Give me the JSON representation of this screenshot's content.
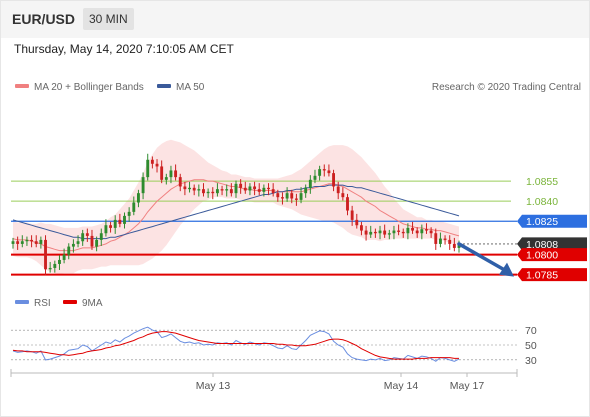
{
  "header": {
    "symbol": "EUR/USD",
    "timeframe": "30 MIN"
  },
  "datetime": "Thursday, May 14, 2020 7:10:05 AM CET",
  "credit": "Research © 2020 Trading Central",
  "colors": {
    "up_candle": "#2e8b2e",
    "down_candle": "#cc2020",
    "bollinger": "#f08080",
    "ma50": "#3a5a9a",
    "resistance": "#9acd5a",
    "pivot": "#2d6fe0",
    "support": "#e00000",
    "last_price": "#333333",
    "rsi": "#6a8ee0",
    "rsi_ma": "#e00000"
  },
  "chart_data": [
    {
      "type": "line",
      "title": "",
      "legend": [
        "MA 20 + Bollinger Bands",
        "MA 50"
      ],
      "x_ticks": [
        "May 13",
        "May 14",
        "May 17"
      ],
      "levels": [
        {
          "label": "1.0855",
          "value": 1.0855,
          "kind": "resistance"
        },
        {
          "label": "1.0840",
          "value": 1.084,
          "kind": "resistance"
        },
        {
          "label": "1.0825",
          "value": 1.0825,
          "kind": "pivot"
        },
        {
          "label": "1.0808",
          "value": 1.0808,
          "kind": "last"
        },
        {
          "label": "1.0800",
          "value": 1.08,
          "kind": "support"
        },
        {
          "label": "1.0785",
          "value": 1.0785,
          "kind": "support"
        }
      ],
      "ylim": [
        1.0775,
        1.0915
      ],
      "arrow": {
        "from": 1.0808,
        "to": 1.0785,
        "direction": "down"
      },
      "series": [
        {
          "name": "EUR/USD",
          "close": [
            1.081,
            1.0808,
            1.081,
            1.0811,
            1.081,
            1.0808,
            1.0811,
            1.0789,
            1.079,
            1.0793,
            1.0796,
            1.08,
            1.0806,
            1.0808,
            1.081,
            1.0816,
            1.0814,
            1.0806,
            1.0811,
            1.0816,
            1.0822,
            1.082,
            1.0826,
            1.0823,
            1.0829,
            1.0832,
            1.0839,
            1.0846,
            1.0858,
            1.0871,
            1.0868,
            1.0866,
            1.0856,
            1.0858,
            1.0863,
            1.0858,
            1.0851,
            1.0849,
            1.085,
            1.0848,
            1.0849,
            1.0846,
            1.0847,
            1.0846,
            1.0849,
            1.0848,
            1.0849,
            1.0846,
            1.0853,
            1.085,
            1.0848,
            1.0851,
            1.0849,
            1.0847,
            1.085,
            1.0849,
            1.0846,
            1.0843,
            1.0842,
            1.0846,
            1.0842,
            1.0841,
            1.0846,
            1.085,
            1.0856,
            1.0859,
            1.0864,
            1.0863,
            1.0861,
            1.0851,
            1.0846,
            1.0843,
            1.0833,
            1.0826,
            1.0822,
            1.0818,
            1.0815,
            1.0817,
            1.0816,
            1.0818,
            1.0815,
            1.0816,
            1.0818,
            1.0817,
            1.0816,
            1.082,
            1.0818,
            1.0816,
            1.0819,
            1.0818,
            1.0816,
            1.0808,
            1.0812,
            1.0811,
            1.0808,
            1.0805,
            1.0808
          ]
        },
        {
          "name": "MA 20",
          "values": [
            1.0812,
            1.0811,
            1.0811,
            1.0811,
            1.081,
            1.0809,
            1.0808,
            1.0806,
            1.0805,
            1.0804,
            1.0803,
            1.0803,
            1.0803,
            1.0803,
            1.0804,
            1.0805,
            1.0805,
            1.0805,
            1.0806,
            1.0807,
            1.0808,
            1.081,
            1.0811,
            1.0813,
            1.0815,
            1.0817,
            1.082,
            1.0823,
            1.0827,
            1.0832,
            1.0836,
            1.084,
            1.0843,
            1.0846,
            1.0849,
            1.0851,
            1.0853,
            1.0854,
            1.0855,
            1.0856,
            1.0856,
            1.0856,
            1.0855,
            1.0855,
            1.0854,
            1.0853,
            1.0852,
            1.0851,
            1.0851,
            1.085,
            1.0849,
            1.0849,
            1.0848,
            1.0848,
            1.0848,
            1.0848,
            1.0848,
            1.0847,
            1.0847,
            1.0847,
            1.0847,
            1.0847,
            1.0847,
            1.0848,
            1.0849,
            1.085,
            1.0851,
            1.0852,
            1.0853,
            1.0853,
            1.0852,
            1.0851,
            1.0849,
            1.0847,
            1.0845,
            1.0843,
            1.084,
            1.0838,
            1.0836,
            1.0833,
            1.0831,
            1.0829,
            1.0827,
            1.0825,
            1.0823,
            1.0822,
            1.0821,
            1.082,
            1.082,
            1.0819,
            1.0819,
            1.0818,
            1.0818,
            1.0817,
            1.0816,
            1.0815,
            1.0814
          ]
        },
        {
          "name": "MA 50",
          "values": [
            1.0826,
            1.0825,
            1.0824,
            1.0823,
            1.0822,
            1.0821,
            1.082,
            1.0819,
            1.0818,
            1.0817,
            1.0816,
            1.0815,
            1.0814,
            1.0813,
            1.0813,
            1.0812,
            1.0812,
            1.0812,
            1.0812,
            1.0812,
            1.0812,
            1.0813,
            1.0813,
            1.0814,
            1.0815,
            1.0816,
            1.0817,
            1.0818,
            1.0819,
            1.082,
            1.0821,
            1.0822,
            1.0823,
            1.0824,
            1.0825,
            1.0826,
            1.0827,
            1.0828,
            1.0829,
            1.083,
            1.0831,
            1.0832,
            1.0833,
            1.0834,
            1.0835,
            1.0836,
            1.0837,
            1.0838,
            1.0839,
            1.084,
            1.0841,
            1.0842,
            1.0843,
            1.0844,
            1.0845,
            1.0845,
            1.0846,
            1.0847,
            1.0847,
            1.0848,
            1.0848,
            1.0849,
            1.0849,
            1.085,
            1.085,
            1.0851,
            1.0851,
            1.0851,
            1.0852,
            1.0852,
            1.0852,
            1.0852,
            1.0851,
            1.0851,
            1.085,
            1.085,
            1.0849,
            1.0848,
            1.0847,
            1.0846,
            1.0845,
            1.0844,
            1.0843,
            1.0842,
            1.0841,
            1.084,
            1.0839,
            1.0838,
            1.0837,
            1.0836,
            1.0835,
            1.0834,
            1.0833,
            1.0832,
            1.0831,
            1.083,
            1.0829
          ]
        },
        {
          "name": "Bollinger Band Width",
          "values": [
            0.0013,
            0.0013,
            0.0013,
            0.0013,
            0.0013,
            0.0014,
            0.0016,
            0.0017,
            0.0018,
            0.0018,
            0.0018,
            0.0017,
            0.0017,
            0.0017,
            0.0016,
            0.0016,
            0.0016,
            0.0016,
            0.0016,
            0.0016,
            0.0017,
            0.0018,
            0.0019,
            0.0021,
            0.0023,
            0.0025,
            0.0028,
            0.0031,
            0.0034,
            0.0037,
            0.0039,
            0.004,
            0.004,
            0.0039,
            0.0037,
            0.0034,
            0.0031,
            0.0028,
            0.0025,
            0.0022,
            0.0019,
            0.0016,
            0.0014,
            0.0012,
            0.0011,
            0.001,
            0.001,
            0.0009,
            0.0009,
            0.0009,
            0.0009,
            0.0009,
            0.0009,
            0.0009,
            0.0009,
            0.0009,
            0.0009,
            0.001,
            0.0011,
            0.0012,
            0.0013,
            0.0015,
            0.0017,
            0.0019,
            0.0021,
            0.0023,
            0.0025,
            0.0027,
            0.0028,
            0.0029,
            0.003,
            0.0031,
            0.0032,
            0.0032,
            0.0031,
            0.003,
            0.0029,
            0.0027,
            0.0025,
            0.0023,
            0.002,
            0.0018,
            0.0015,
            0.0013,
            0.0011,
            0.001,
            0.0009,
            0.0008,
            0.0008,
            0.0007,
            0.0007,
            0.0007,
            0.0007,
            0.0007,
            0.0007,
            0.0007,
            0.0007
          ]
        }
      ]
    },
    {
      "type": "line",
      "title": "",
      "legend": [
        "RSI",
        "9MA"
      ],
      "y_ticks": [
        70,
        50,
        30
      ],
      "ylim": [
        15,
        85
      ],
      "series": [
        {
          "name": "RSI",
          "values": [
            42,
            40,
            41,
            42,
            41,
            39,
            42,
            30,
            31,
            33,
            35,
            38,
            43,
            44,
            45,
            50,
            48,
            42,
            46,
            50,
            54,
            52,
            57,
            54,
            59,
            62,
            66,
            69,
            72,
            74,
            70,
            68,
            60,
            62,
            65,
            60,
            55,
            53,
            54,
            52,
            53,
            50,
            51,
            50,
            53,
            52,
            53,
            50,
            56,
            53,
            51,
            54,
            52,
            50,
            53,
            52,
            49,
            46,
            45,
            49,
            45,
            44,
            50,
            56,
            63,
            66,
            69,
            68,
            65,
            55,
            50,
            47,
            38,
            33,
            31,
            30,
            29,
            31,
            30,
            32,
            29,
            30,
            33,
            32,
            31,
            36,
            34,
            32,
            35,
            34,
            32,
            28,
            33,
            32,
            30,
            28,
            31
          ]
        },
        {
          "name": "9MA",
          "values": [
            43,
            42,
            42,
            41,
            41,
            41,
            41,
            40,
            39,
            38,
            37,
            37,
            36,
            37,
            38,
            39,
            41,
            42,
            43,
            44,
            46,
            47,
            49,
            50,
            52,
            54,
            56,
            59,
            61,
            64,
            66,
            67,
            68,
            68,
            67,
            66,
            64,
            62,
            60,
            58,
            56,
            55,
            54,
            53,
            52,
            52,
            52,
            52,
            52,
            52,
            52,
            52,
            52,
            52,
            52,
            52,
            52,
            51,
            51,
            50,
            50,
            49,
            49,
            49,
            50,
            51,
            53,
            55,
            57,
            58,
            58,
            57,
            55,
            52,
            49,
            45,
            42,
            39,
            36,
            34,
            33,
            32,
            31,
            31,
            31,
            31,
            31,
            32,
            32,
            32,
            33,
            33,
            33,
            33,
            33,
            32,
            32
          ]
        }
      ]
    }
  ]
}
